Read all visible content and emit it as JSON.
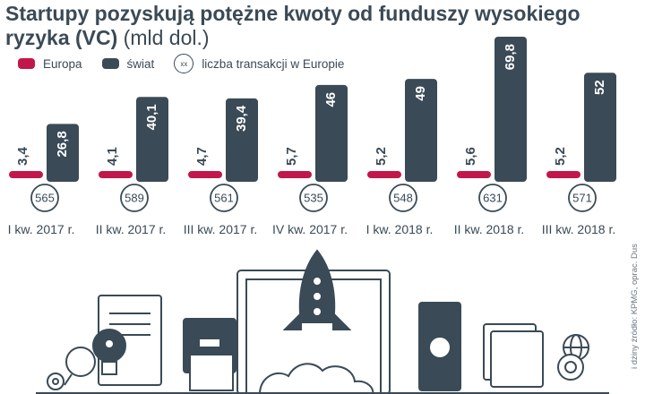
{
  "title": {
    "main": "Startupy pozyskują potężne kwoty od funduszy wysokiego ryzyka (VC)",
    "unit": "(mld dol.)"
  },
  "legend": {
    "europe": "Europa",
    "world": "świat",
    "deals_symbol": "xx",
    "deals": "liczba transakcji w Europie"
  },
  "colors": {
    "europe": "#c2174a",
    "world": "#3a4a56",
    "text": "#3a4a56"
  },
  "source": "i dżiny źródło: KPMG, oprac. Dus",
  "chart_data": {
    "type": "bar",
    "categories": [
      "I kw. 2017 r.",
      "II kw. 2017 r.",
      "III kw. 2017 r.",
      "IV kw. 2017 r.",
      "I kw. 2018 r.",
      "II kw. 2018 r.",
      "III kw. 2018 r."
    ],
    "series": [
      {
        "name": "Europa",
        "values": [
          3.4,
          4.1,
          4.7,
          5.7,
          5.2,
          5.6,
          5.2
        ],
        "labels": [
          "3,4",
          "4,1",
          "4,7",
          "5,7",
          "5,2",
          "5,6",
          "5,2"
        ]
      },
      {
        "name": "świat",
        "values": [
          26.8,
          40.1,
          39.4,
          46,
          49,
          69.8,
          52
        ],
        "labels": [
          "26,8",
          "40,1",
          "39,4",
          "46",
          "49",
          "69,8",
          "52"
        ]
      }
    ],
    "deals": [
      565,
      589,
      561,
      535,
      548,
      631,
      571
    ],
    "ylim": [
      0,
      69.8
    ],
    "grid": false
  }
}
